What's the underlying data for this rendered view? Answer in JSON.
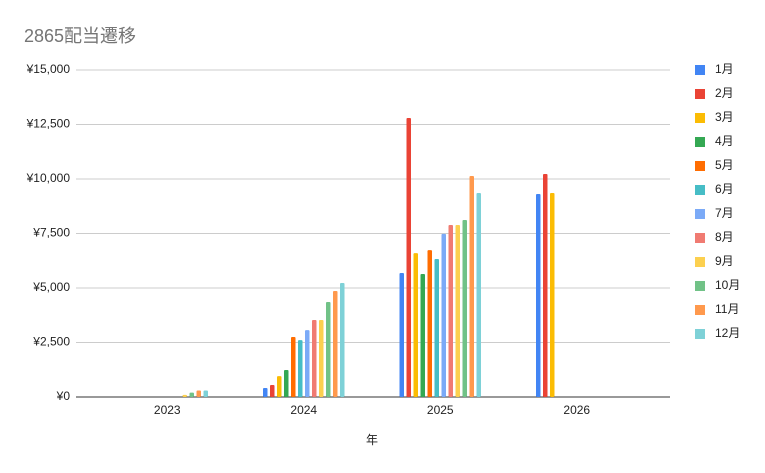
{
  "chart_data": {
    "type": "bar",
    "title": "2865配当遷移",
    "x_label": "年",
    "categories": [
      "2023",
      "2024",
      "2025",
      "2026"
    ],
    "series": [
      {
        "name": "1月",
        "color": "#4285f4",
        "values": [
          null,
          410,
          5690,
          9310
        ]
      },
      {
        "name": "2月",
        "color": "#ea4335",
        "values": [
          null,
          550,
          12800,
          10230
        ]
      },
      {
        "name": "3月",
        "color": "#fbbc04",
        "values": [
          null,
          960,
          6600,
          9360
        ]
      },
      {
        "name": "4月",
        "color": "#34a853",
        "values": [
          null,
          1240,
          5640,
          null
        ]
      },
      {
        "name": "5月",
        "color": "#ff6d01",
        "values": [
          null,
          2750,
          6740,
          null
        ]
      },
      {
        "name": "6月",
        "color": "#46bdc6",
        "values": [
          null,
          2610,
          6330,
          null
        ]
      },
      {
        "name": "7月",
        "color": "#7baaf7",
        "values": [
          null,
          3070,
          7480,
          null
        ]
      },
      {
        "name": "8月",
        "color": "#f07b72",
        "values": [
          null,
          3530,
          7890,
          null
        ]
      },
      {
        "name": "9月",
        "color": "#fcd04f",
        "values": [
          100,
          3530,
          7890,
          null
        ]
      },
      {
        "name": "10月",
        "color": "#71c287",
        "values": [
          200,
          4360,
          8120,
          null
        ]
      },
      {
        "name": "11月",
        "color": "#ff994d",
        "values": [
          300,
          4860,
          10140,
          null
        ]
      },
      {
        "name": "12月",
        "color": "#7ed1d7",
        "values": [
          300,
          5230,
          9360,
          null
        ]
      }
    ],
    "ylim": [
      0,
      15000
    ],
    "yticks": [
      {
        "value": 0,
        "label": "¥0"
      },
      {
        "value": 2500,
        "label": "¥2,500"
      },
      {
        "value": 5000,
        "label": "¥5,000"
      },
      {
        "value": 7500,
        "label": "¥7,500"
      },
      {
        "value": 10000,
        "label": "¥10,000"
      },
      {
        "value": 12500,
        "label": "¥12,500"
      },
      {
        "value": 15000,
        "label": "¥15,000"
      }
    ],
    "grid": true,
    "legend": "right"
  }
}
